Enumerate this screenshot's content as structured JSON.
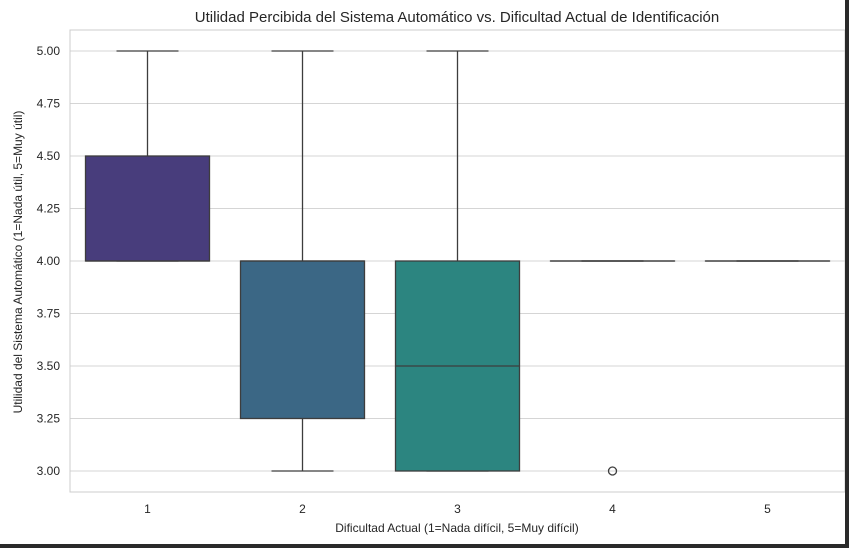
{
  "chart_data": {
    "type": "box",
    "title": "Utilidad Percibida del Sistema Automático vs. Dificultad Actual de Identificación",
    "xlabel": "Dificultad Actual (1=Nada difícil, 5=Muy difícil)",
    "ylabel": "Utilidad del Sistema Automático (1=Nada útil, 5=Muy útil)",
    "categories": [
      "1",
      "2",
      "3",
      "4",
      "5"
    ],
    "ylim": [
      2.9,
      5.1
    ],
    "yticks": [
      "3.00",
      "3.25",
      "3.50",
      "3.75",
      "4.00",
      "4.25",
      "4.50",
      "4.75",
      "5.00"
    ],
    "grid": "horizontal",
    "boxes": [
      {
        "category": "1",
        "whisker_low": 4.0,
        "q1": 4.0,
        "median": 4.0,
        "q3": 4.5,
        "whisker_high": 5.0,
        "outliers": [],
        "color": "#483d7c"
      },
      {
        "category": "2",
        "whisker_low": 3.0,
        "q1": 3.25,
        "median": 4.0,
        "q3": 4.0,
        "whisker_high": 5.0,
        "outliers": [],
        "color": "#3b6785"
      },
      {
        "category": "3",
        "whisker_low": 3.0,
        "q1": 3.0,
        "median": 3.5,
        "q3": 4.0,
        "whisker_high": 5.0,
        "outliers": [],
        "color": "#2c8580"
      },
      {
        "category": "4",
        "whisker_low": 4.0,
        "q1": 4.0,
        "median": 4.0,
        "q3": 4.0,
        "whisker_high": 4.0,
        "outliers": [
          3.0
        ],
        "color": "#2ca184"
      },
      {
        "category": "5",
        "whisker_low": 4.0,
        "q1": 4.0,
        "median": 4.0,
        "q3": 4.0,
        "whisker_high": 4.0,
        "outliers": [],
        "color": "#46b672"
      }
    ]
  }
}
